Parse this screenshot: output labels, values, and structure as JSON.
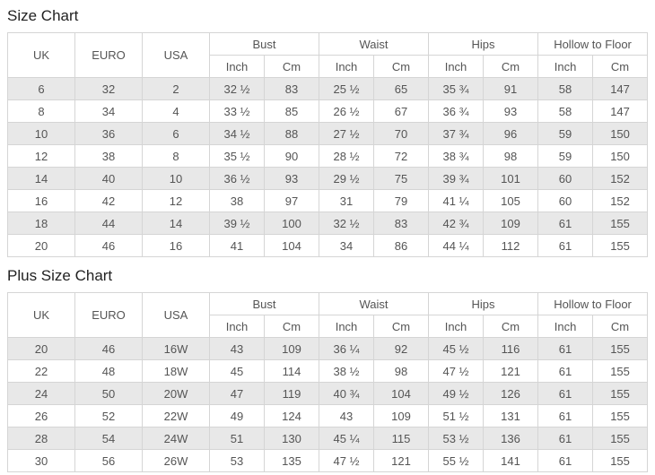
{
  "colors": {
    "row_stripe": "#e8e8e8",
    "table_border": "#d5d5d5",
    "cell_text": "#555555",
    "title_text": "#222222"
  },
  "chart_data": [
    {
      "type": "table",
      "title": "Size Chart",
      "headers": {
        "uk": "UK",
        "euro": "EURO",
        "usa": "USA",
        "groups": [
          "Bust",
          "Waist",
          "Hips",
          "Hollow to Floor"
        ],
        "units": [
          "Inch",
          "Cm"
        ]
      },
      "rows": [
        [
          "6",
          "32",
          "2",
          "32 ½",
          "83",
          "25 ½",
          "65",
          "35 ¾",
          "91",
          "58",
          "147"
        ],
        [
          "8",
          "34",
          "4",
          "33 ½",
          "85",
          "26 ½",
          "67",
          "36 ¾",
          "93",
          "58",
          "147"
        ],
        [
          "10",
          "36",
          "6",
          "34 ½",
          "88",
          "27 ½",
          "70",
          "37 ¾",
          "96",
          "59",
          "150"
        ],
        [
          "12",
          "38",
          "8",
          "35 ½",
          "90",
          "28 ½",
          "72",
          "38 ¾",
          "98",
          "59",
          "150"
        ],
        [
          "14",
          "40",
          "10",
          "36 ½",
          "93",
          "29 ½",
          "75",
          "39 ¾",
          "101",
          "60",
          "152"
        ],
        [
          "16",
          "42",
          "12",
          "38",
          "97",
          "31",
          "79",
          "41 ¼",
          "105",
          "60",
          "152"
        ],
        [
          "18",
          "44",
          "14",
          "39 ½",
          "100",
          "32 ½",
          "83",
          "42 ¾",
          "109",
          "61",
          "155"
        ],
        [
          "20",
          "46",
          "16",
          "41",
          "104",
          "34",
          "86",
          "44 ¼",
          "112",
          "61",
          "155"
        ]
      ]
    },
    {
      "type": "table",
      "title": "Plus Size Chart",
      "headers": {
        "uk": "UK",
        "euro": "EURO",
        "usa": "USA",
        "groups": [
          "Bust",
          "Waist",
          "Hips",
          "Hollow to Floor"
        ],
        "units": [
          "Inch",
          "Cm"
        ]
      },
      "rows": [
        [
          "20",
          "46",
          "16W",
          "43",
          "109",
          "36 ¼",
          "92",
          "45 ½",
          "116",
          "61",
          "155"
        ],
        [
          "22",
          "48",
          "18W",
          "45",
          "114",
          "38 ½",
          "98",
          "47 ½",
          "121",
          "61",
          "155"
        ],
        [
          "24",
          "50",
          "20W",
          "47",
          "119",
          "40 ¾",
          "104",
          "49 ½",
          "126",
          "61",
          "155"
        ],
        [
          "26",
          "52",
          "22W",
          "49",
          "124",
          "43",
          "109",
          "51 ½",
          "131",
          "61",
          "155"
        ],
        [
          "28",
          "54",
          "24W",
          "51",
          "130",
          "45 ¼",
          "115",
          "53 ½",
          "136",
          "61",
          "155"
        ],
        [
          "30",
          "56",
          "26W",
          "53",
          "135",
          "47 ½",
          "121",
          "55 ½",
          "141",
          "61",
          "155"
        ]
      ]
    }
  ]
}
